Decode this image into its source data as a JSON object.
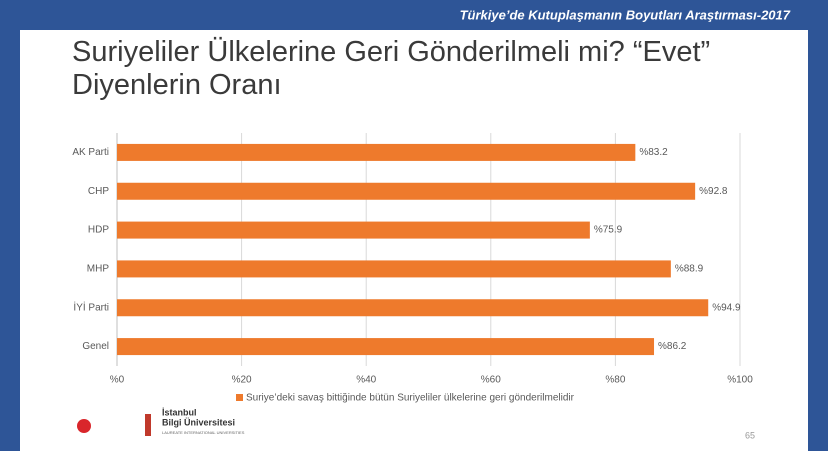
{
  "header": {
    "title": "Türkiye’de Kutuplaşmanın Boyutları Araştırması-2017"
  },
  "footer": {
    "line1": "İstanbul",
    "line2": "Bilgi Üniversitesi",
    "line3": "LAUREATE INTERNATIONAL UNIVERSITIES",
    "slide_number": 65
  },
  "chart_data": {
    "type": "bar",
    "orientation": "horizontal",
    "title": "Suriyeliler Ülkelerine Geri Gönderilmeli mi? “Evet” Diyenlerin Oranı",
    "categories": [
      "AK Parti",
      "CHP",
      "HDP",
      "MHP",
      "İYİ Parti",
      "Genel"
    ],
    "series": [
      {
        "name": "Suriye’deki savaş bittiğinde bütün Suriyeliler ülkelerine geri gönderilmelidir",
        "color": "#ee7a2c",
        "values": [
          83.2,
          92.8,
          75.9,
          88.9,
          94.9,
          86.2
        ],
        "value_labels": [
          "%83.2",
          "%92.8",
          "%75.9",
          "%88.9",
          "%94.9",
          "%86.2"
        ]
      }
    ],
    "xlim": [
      0,
      100
    ],
    "xticks": [
      {
        "value": 0,
        "label": "%0"
      },
      {
        "value": 20,
        "label": "%20"
      },
      {
        "value": 40,
        "label": "%40"
      },
      {
        "value": 60,
        "label": "%60"
      },
      {
        "value": 80,
        "label": "%80"
      },
      {
        "value": 100,
        "label": "%100"
      }
    ],
    "grid": true
  }
}
